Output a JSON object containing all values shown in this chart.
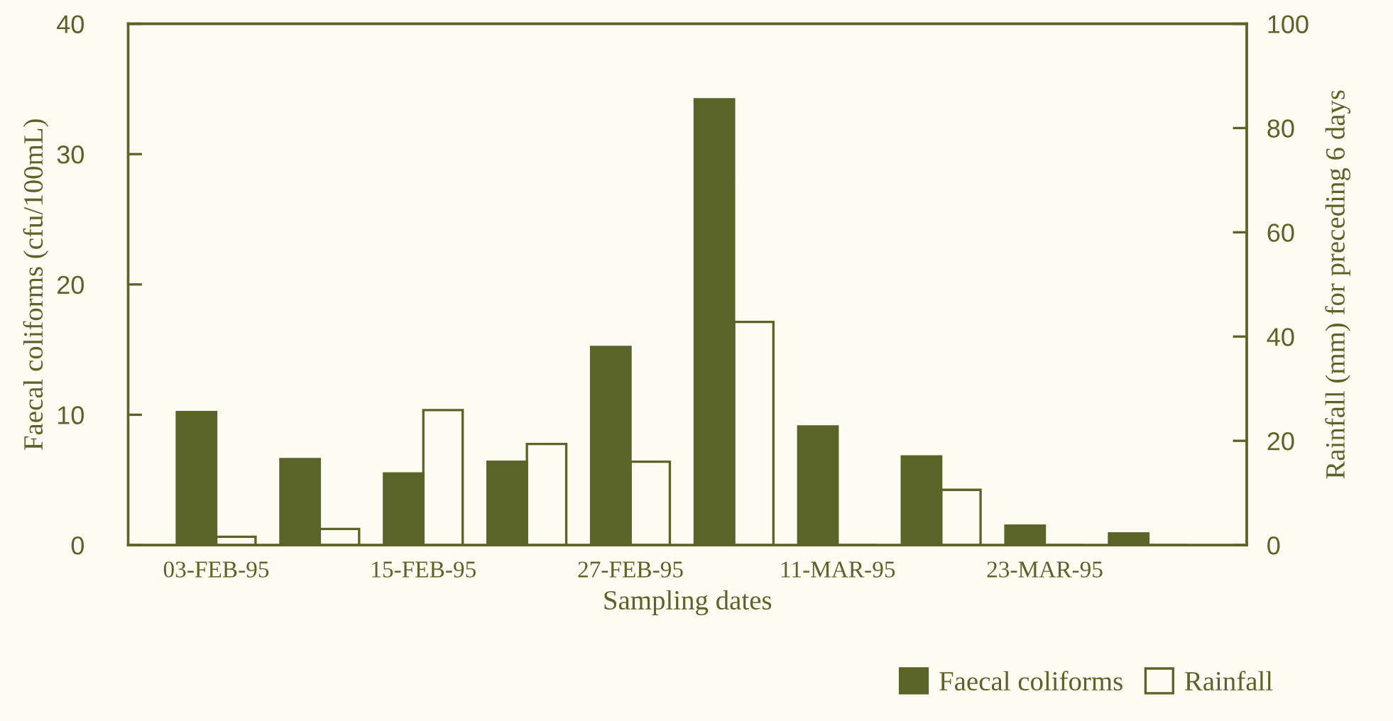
{
  "chart_data": {
    "type": "bar",
    "xlabel": "Sampling dates",
    "ylabel": "Faecal coliforms (cfu/100mL)",
    "y2label": "Rainfall (mm) for preceding 6 days",
    "categories": [
      "03-FEB-95",
      null,
      "15-FEB-95",
      null,
      "27-FEB-95",
      null,
      "11-MAR-95",
      null,
      "23-MAR-95",
      null
    ],
    "series": [
      {
        "name": "Faecal coliforms",
        "color": "#5a6428",
        "values": [
          10.2,
          6.6,
          5.5,
          6.4,
          15.2,
          34.2,
          9.1,
          6.8,
          1.5,
          0.9
        ]
      },
      {
        "name": "Rainfall",
        "color": "#fdfcf3",
        "axis": "y2",
        "values": [
          1.6,
          3.1,
          25.9,
          19.4,
          16.0,
          42.8,
          0,
          10.6,
          null,
          0
        ]
      }
    ],
    "ylim": [
      0,
      40
    ],
    "yticks": [
      0,
      10,
      20,
      30,
      40
    ],
    "y2lim": [
      0,
      100
    ],
    "y2ticks": [
      0,
      20,
      40,
      60,
      80,
      100
    ],
    "legend": "bottom right",
    "grid": false
  }
}
